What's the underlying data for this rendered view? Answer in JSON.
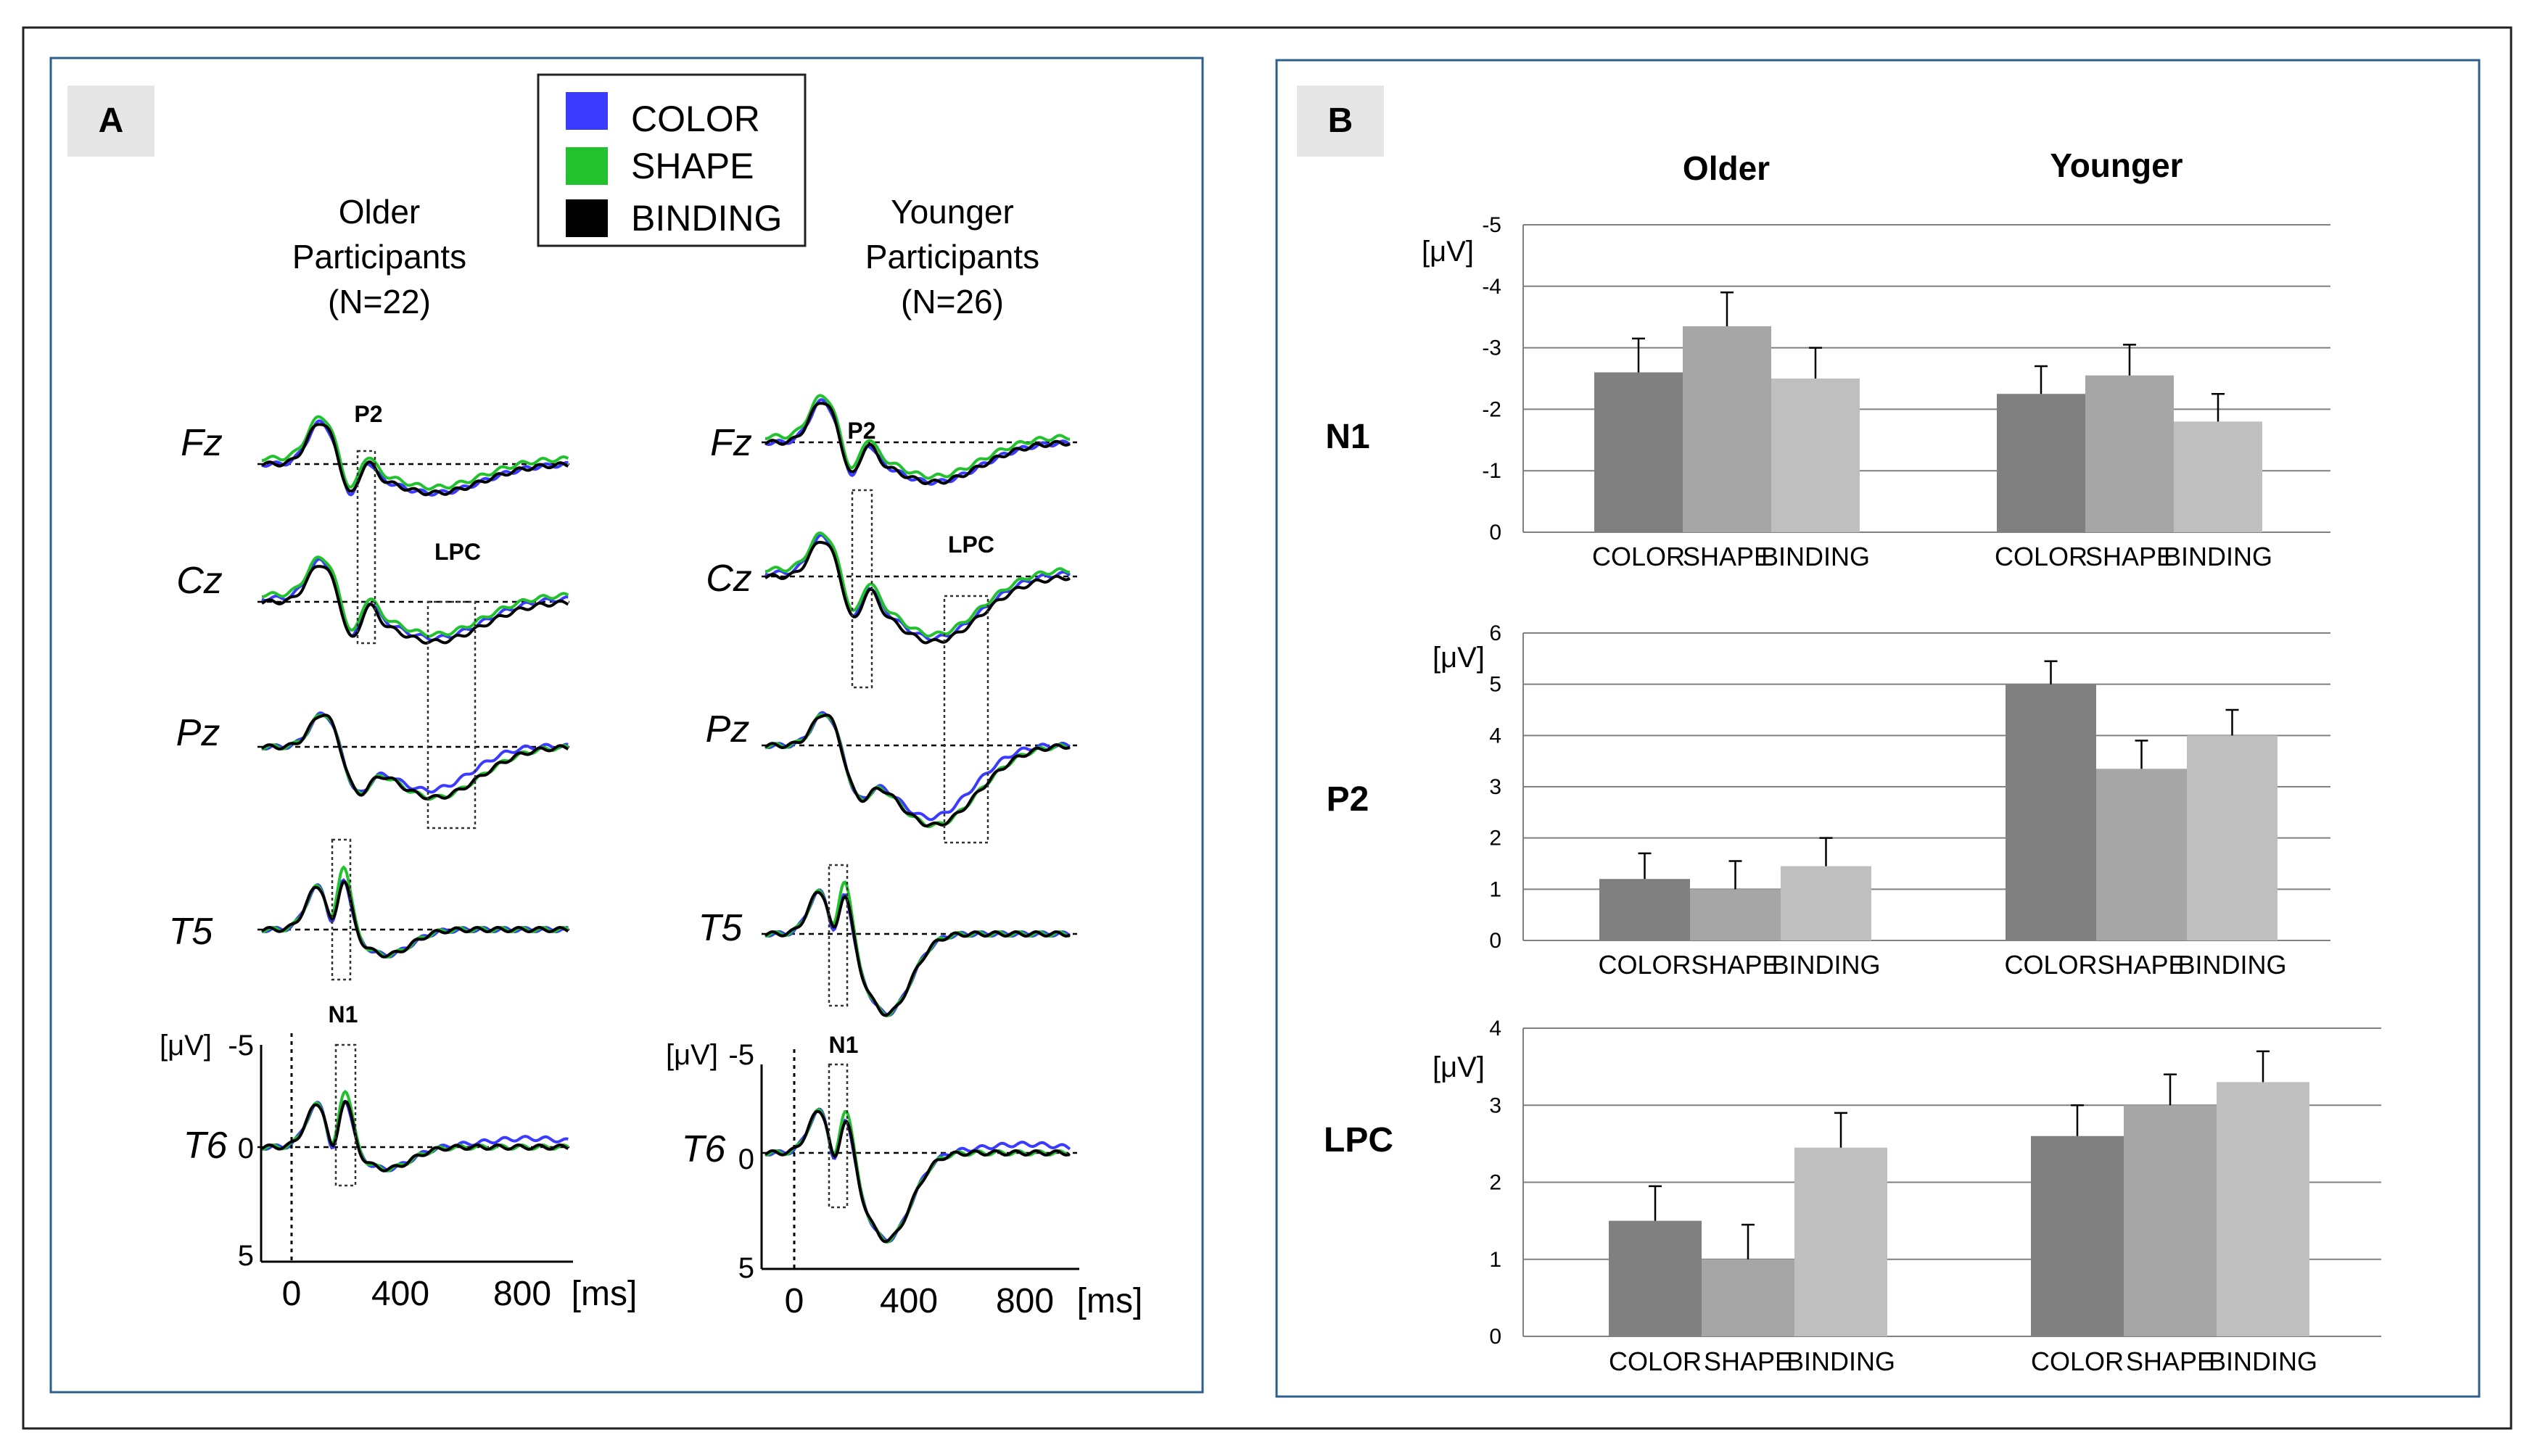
{
  "panel_a": {
    "label": "A",
    "legend": [
      {
        "label": "COLOR",
        "color": "#3b3bff"
      },
      {
        "label": "SHAPE",
        "color": "#22c22e"
      },
      {
        "label": "BINDING",
        "color": "#000000"
      }
    ],
    "groups": [
      {
        "title": [
          "Older",
          "Participants",
          "(N=22)"
        ]
      },
      {
        "title": [
          "Younger",
          "Participants",
          "(N=26)"
        ]
      }
    ],
    "channels": [
      "Fz",
      "Cz",
      "Pz",
      "T5",
      "T6"
    ],
    "component_labels": {
      "p2": "P2",
      "lpc": "LPC",
      "n1": "N1"
    },
    "y_unit": "[μV]",
    "y_ticks": [
      "-5",
      "0",
      "5"
    ],
    "x_ticks": [
      "0",
      "400",
      "800"
    ],
    "x_unit": "[ms]"
  },
  "panel_b": {
    "label": "B",
    "column_headers": [
      "Older",
      "Younger"
    ]
  },
  "chart_data": [
    {
      "type": "bar",
      "title": "N1",
      "ylabel": "[μV]",
      "y_reversed": true,
      "ylim": [
        0,
        -5
      ],
      "yticks": [
        0,
        -1,
        -2,
        -3,
        -4,
        -5
      ],
      "categories": [
        "COLOR",
        "SHAPE",
        "BINDING"
      ],
      "groups": [
        "Older",
        "Younger"
      ],
      "series": [
        {
          "group": "Older",
          "values": [
            -2.6,
            -3.35,
            -2.5
          ],
          "errors": [
            0.55,
            0.55,
            0.5
          ]
        },
        {
          "group": "Younger",
          "values": [
            -2.25,
            -2.55,
            -1.8
          ],
          "errors": [
            0.45,
            0.5,
            0.45
          ]
        }
      ],
      "bar_colors": [
        "#808080",
        "#a6a6a6",
        "#bfbfbf"
      ],
      "grid": true
    },
    {
      "type": "bar",
      "title": "P2",
      "ylabel": "[μV]",
      "ylim": [
        0,
        6
      ],
      "yticks": [
        0,
        1,
        2,
        3,
        4,
        5,
        6
      ],
      "categories": [
        "COLOR",
        "SHAPE",
        "BINDING"
      ],
      "groups": [
        "Older",
        "Younger"
      ],
      "series": [
        {
          "group": "Older",
          "values": [
            1.2,
            1.0,
            1.45
          ],
          "errors": [
            0.5,
            0.55,
            0.55
          ]
        },
        {
          "group": "Younger",
          "values": [
            5.0,
            3.35,
            4.0
          ],
          "errors": [
            0.45,
            0.55,
            0.5
          ]
        }
      ],
      "bar_colors": [
        "#808080",
        "#a6a6a6",
        "#bfbfbf"
      ],
      "grid": true
    },
    {
      "type": "bar",
      "title": "LPC",
      "ylabel": "[μV]",
      "ylim": [
        0,
        4
      ],
      "yticks": [
        0,
        1,
        2,
        3,
        4
      ],
      "categories": [
        "COLOR",
        "SHAPE",
        "BINDING"
      ],
      "groups": [
        "Older",
        "Younger"
      ],
      "series": [
        {
          "group": "Older",
          "values": [
            1.5,
            1.0,
            2.45
          ],
          "errors": [
            0.45,
            0.45,
            0.45
          ]
        },
        {
          "group": "Younger",
          "values": [
            2.6,
            3.0,
            3.3
          ],
          "errors": [
            0.4,
            0.4,
            0.4
          ]
        }
      ],
      "bar_colors": [
        "#808080",
        "#a6a6a6",
        "#bfbfbf"
      ],
      "grid": true
    }
  ]
}
